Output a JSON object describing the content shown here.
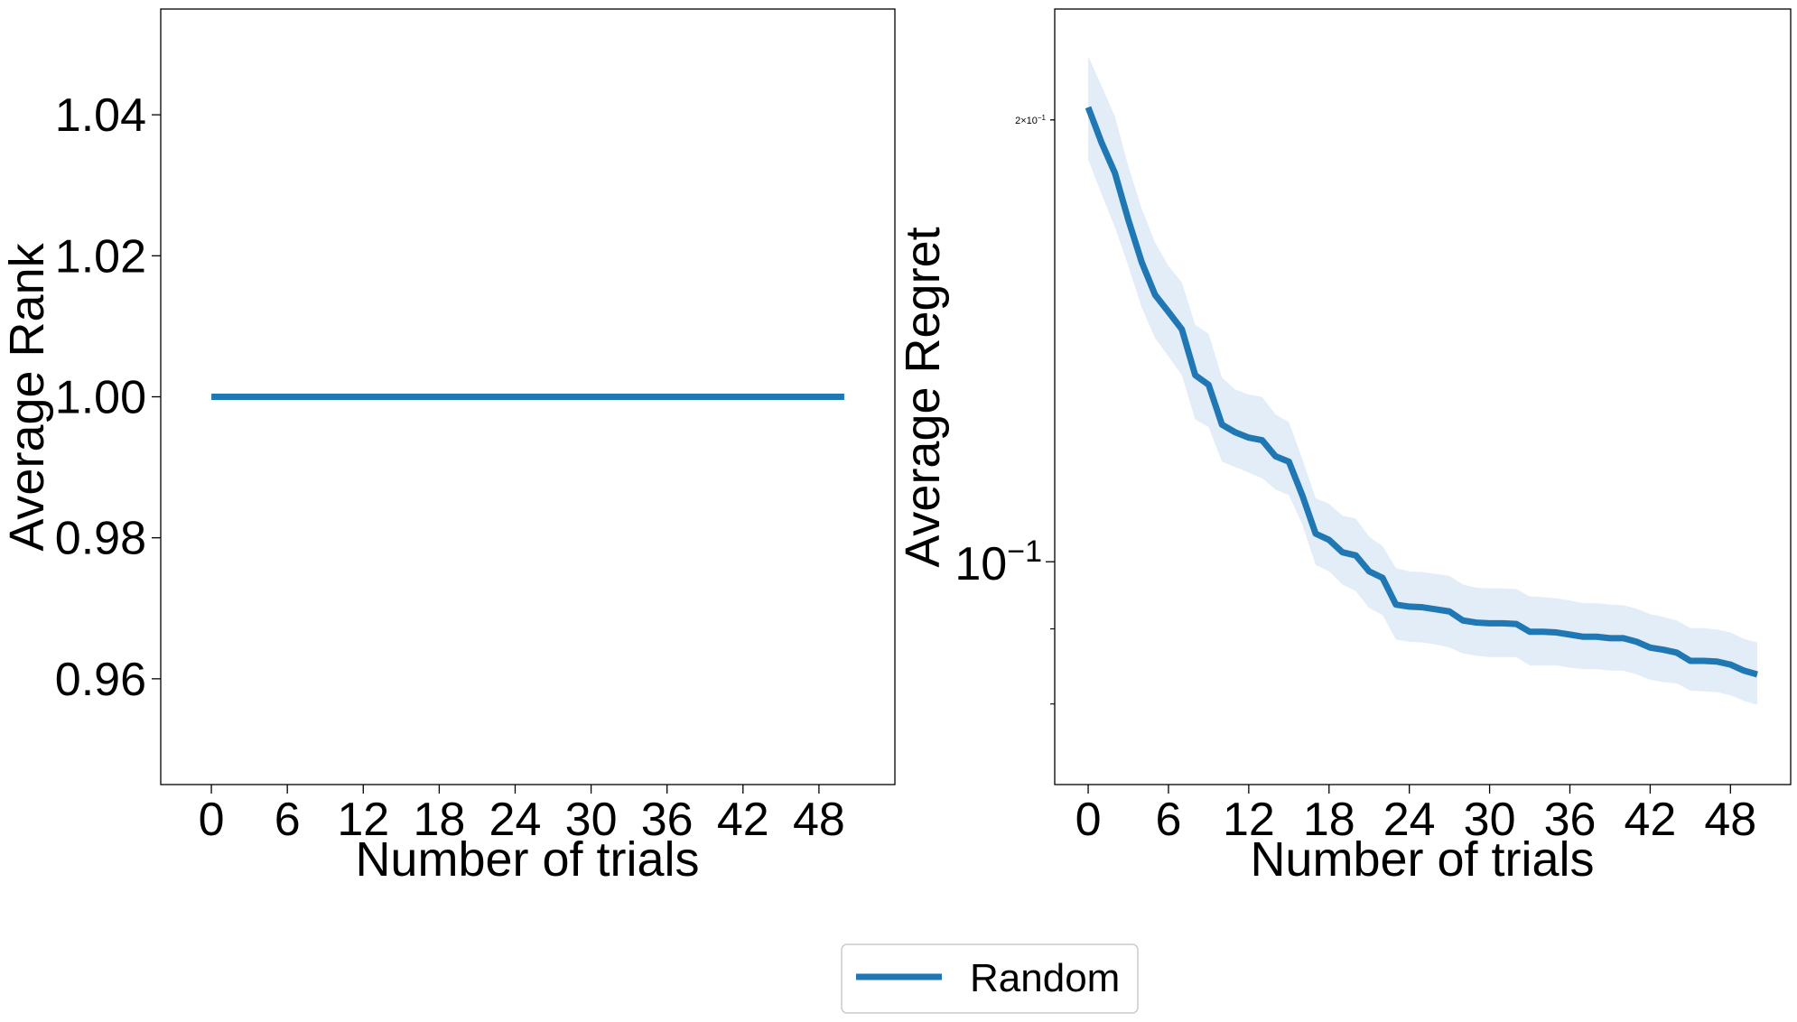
{
  "legend": {
    "label": "Random",
    "location": "lower center"
  },
  "colors": {
    "series": "#1f77b4",
    "band": "#dbe8f5",
    "axes": "#000000"
  },
  "chart_data": [
    {
      "type": "line",
      "xlabel": "Number of trials",
      "ylabel": "Average Rank",
      "xlim": [
        -4,
        54
      ],
      "ylim": [
        0.945,
        1.055
      ],
      "xticks": [
        0,
        6,
        12,
        18,
        24,
        30,
        36,
        42,
        48
      ],
      "xtick_labels": [
        "0",
        "6",
        "12",
        "18",
        "24",
        "30",
        "36",
        "42",
        "48"
      ],
      "yticks": [
        0.96,
        0.98,
        1.0,
        1.02,
        1.04
      ],
      "ytick_labels": [
        "0.96",
        "0.98",
        "1.00",
        "1.02",
        "1.04"
      ],
      "grid": false,
      "series": [
        {
          "name": "Random",
          "x": [
            0,
            50
          ],
          "y": [
            1.0,
            1.0
          ]
        }
      ]
    },
    {
      "type": "line",
      "xlabel": "Number of trials",
      "ylabel": "Average Regret",
      "yscale": "log",
      "xlim": [
        -2.5,
        52.5
      ],
      "ylim": [
        0.0705,
        0.238
      ],
      "xticks": [
        0,
        6,
        12,
        18,
        24,
        30,
        36,
        42,
        48
      ],
      "xtick_labels": [
        "0",
        "6",
        "12",
        "18",
        "24",
        "30",
        "36",
        "42",
        "48"
      ],
      "yticks": [
        {
          "value": 0.1,
          "base": "10",
          "exp": "−1",
          "size": "major"
        },
        {
          "value": 0.2,
          "base": "2×10",
          "exp": "−1",
          "size": "minor"
        }
      ],
      "grid": false,
      "series": [
        {
          "name": "Random",
          "x": [
            0,
            1,
            2,
            3,
            4,
            5,
            6,
            7,
            8,
            9,
            10,
            11,
            12,
            13,
            14,
            15,
            16,
            17,
            18,
            19,
            20,
            21,
            22,
            23,
            24,
            25,
            26,
            27,
            28,
            29,
            30,
            31,
            32,
            33,
            34,
            35,
            36,
            37,
            38,
            39,
            40,
            41,
            42,
            43,
            44,
            45,
            46,
            47,
            48,
            49,
            50
          ],
          "y": [
            0.204,
            0.193,
            0.184,
            0.171,
            0.16,
            0.152,
            0.148,
            0.144,
            0.134,
            0.132,
            0.124,
            0.1225,
            0.1215,
            0.121,
            0.118,
            0.117,
            0.111,
            0.1045,
            0.1035,
            0.1015,
            0.101,
            0.0985,
            0.0975,
            0.0935,
            0.0932,
            0.0931,
            0.0928,
            0.0925,
            0.0912,
            0.0909,
            0.0908,
            0.0908,
            0.0907,
            0.0896,
            0.0896,
            0.0895,
            0.0892,
            0.0889,
            0.0889,
            0.0887,
            0.0887,
            0.0882,
            0.0874,
            0.0871,
            0.0867,
            0.0856,
            0.0856,
            0.0855,
            0.0851,
            0.0843,
            0.0838
          ],
          "lower": [
            0.188,
            0.178,
            0.169,
            0.159,
            0.149,
            0.142,
            0.138,
            0.134,
            0.125,
            0.1235,
            0.117,
            0.116,
            0.115,
            0.114,
            0.112,
            0.111,
            0.106,
            0.0995,
            0.0985,
            0.0965,
            0.0955,
            0.093,
            0.092,
            0.0885,
            0.0882,
            0.0881,
            0.0878,
            0.0874,
            0.0866,
            0.0863,
            0.0861,
            0.0861,
            0.0861,
            0.085,
            0.085,
            0.085,
            0.0847,
            0.0845,
            0.0845,
            0.0843,
            0.0843,
            0.0838,
            0.0831,
            0.0828,
            0.0826,
            0.0817,
            0.0816,
            0.0815,
            0.0811,
            0.0804,
            0.0799
          ],
          "upper": [
            0.221,
            0.211,
            0.201,
            0.186,
            0.174,
            0.165,
            0.159,
            0.155,
            0.145,
            0.143,
            0.1335,
            0.131,
            0.13,
            0.1295,
            0.126,
            0.1245,
            0.1175,
            0.1105,
            0.1095,
            0.1075,
            0.107,
            0.104,
            0.1025,
            0.099,
            0.0985,
            0.0984,
            0.0981,
            0.0978,
            0.0965,
            0.096,
            0.0959,
            0.0959,
            0.0958,
            0.0947,
            0.0946,
            0.0944,
            0.0941,
            0.0937,
            0.0937,
            0.0935,
            0.0934,
            0.0929,
            0.0921,
            0.0917,
            0.0912,
            0.0901,
            0.0901,
            0.0899,
            0.0895,
            0.0886,
            0.0881
          ]
        }
      ]
    }
  ]
}
